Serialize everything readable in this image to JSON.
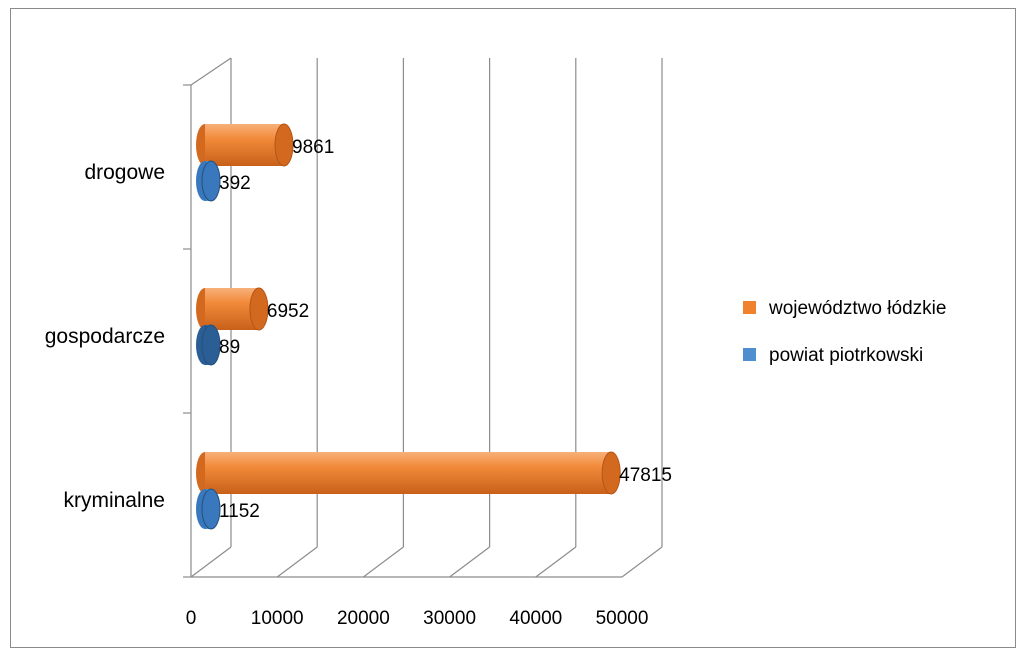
{
  "chart_data": {
    "type": "bar",
    "orientation": "horizontal",
    "style": "3d-cylinder",
    "categories": [
      "drogowe",
      "gospodarcze",
      "kryminalne"
    ],
    "series": [
      {
        "name": "województwo łódzkie",
        "values": [
          9861,
          6952,
          47815
        ],
        "color": "#F0822E"
      },
      {
        "name": "powiat piotrkowski",
        "values": [
          392,
          89,
          1152
        ],
        "color": "#4F8FD0"
      }
    ],
    "xlim": [
      0,
      50000
    ],
    "xticks": [
      "0",
      "10000",
      "20000",
      "30000",
      "40000",
      "50000"
    ],
    "grid": true,
    "legend_position": "right",
    "data_labels": true,
    "title": "",
    "xlabel": "",
    "ylabel": ""
  }
}
